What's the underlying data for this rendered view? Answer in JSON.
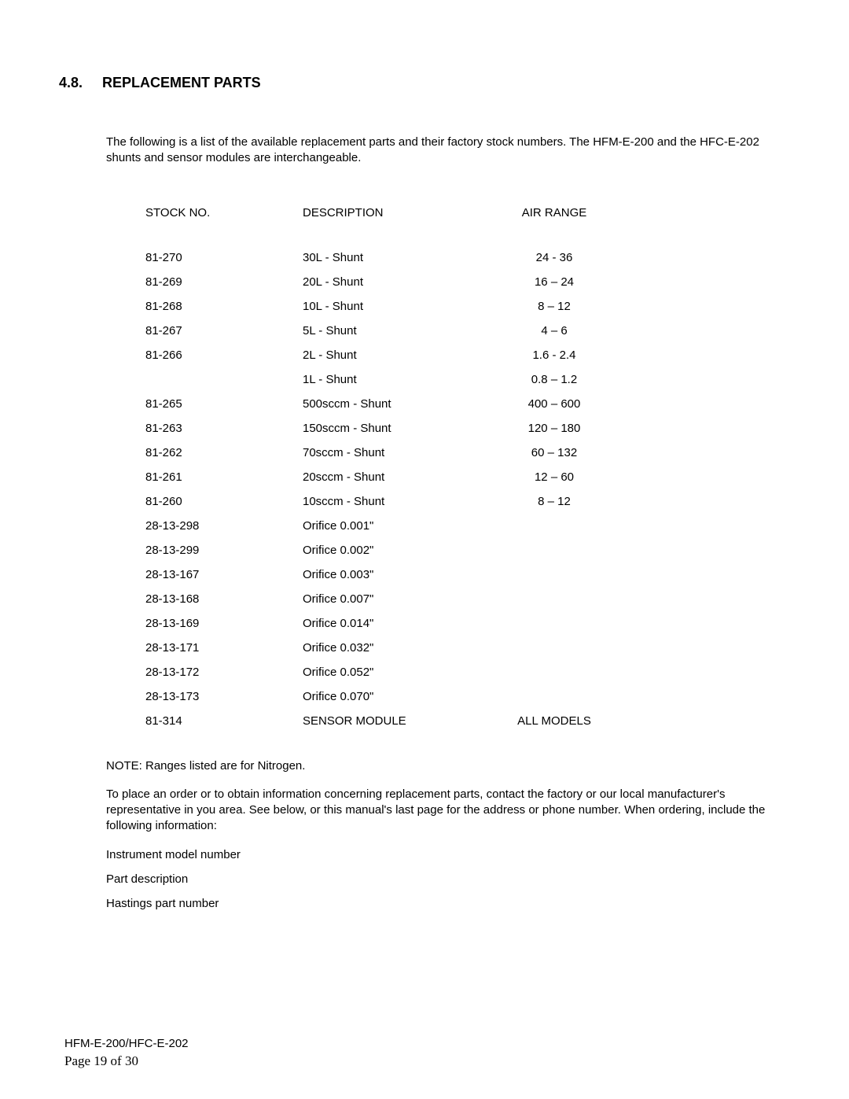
{
  "heading": {
    "number": "4.8.",
    "title": "REPLACEMENT PARTS"
  },
  "intro": "The following is a list of the available replacement parts and their factory stock numbers.    The HFM-E-200 and the HFC-E-202 shunts and sensor modules are interchangeable.",
  "table": {
    "headers": {
      "stock": "STOCK NO.",
      "description": "DESCRIPTION",
      "range": "AIR RANGE"
    },
    "rows": [
      {
        "stock": "81-270",
        "desc": "30L - Shunt",
        "range": "24 - 36"
      },
      {
        "stock": "81-269",
        "desc": "20L - Shunt",
        "range": "16 – 24"
      },
      {
        "stock": "81-268",
        "desc": "10L - Shunt",
        "range": "8 – 12"
      },
      {
        "stock": "81-267",
        "desc": "5L - Shunt",
        "range": "4 – 6"
      },
      {
        "stock": "81-266",
        "desc": "2L - Shunt",
        "range": "1.6 - 2.4"
      },
      {
        "stock": "",
        "desc": "1L - Shunt",
        "range": "0.8 – 1.2"
      },
      {
        "stock": "81-265",
        "desc": "500sccm - Shunt",
        "range": "400 – 600"
      },
      {
        "stock": "81-263",
        "desc": "150sccm - Shunt",
        "range": "120 – 180"
      },
      {
        "stock": "81-262",
        "desc": "70sccm - Shunt",
        "range": "60 – 132"
      },
      {
        "stock": "81-261",
        "desc": "20sccm - Shunt",
        "range": "12 – 60"
      },
      {
        "stock": "81-260",
        "desc": "10sccm - Shunt",
        "range": "8 – 12"
      },
      {
        "stock": "28-13-298",
        "desc": "Orifice 0.001\"",
        "range": ""
      },
      {
        "stock": "28-13-299",
        "desc": "Orifice 0.002\"",
        "range": ""
      },
      {
        "stock": "28-13-167",
        "desc": "Orifice 0.003\"",
        "range": ""
      },
      {
        "stock": "28-13-168",
        "desc": "Orifice 0.007\"",
        "range": ""
      },
      {
        "stock": "28-13-169",
        "desc": "Orifice 0.014\"",
        "range": ""
      },
      {
        "stock": "28-13-171",
        "desc": "Orifice 0.032\"",
        "range": ""
      },
      {
        "stock": "28-13-172",
        "desc": "Orifice 0.052\"",
        "range": ""
      },
      {
        "stock": "28-13-173",
        "desc": "Orifice 0.070\"",
        "range": ""
      },
      {
        "stock": "81-314",
        "desc": "SENSOR MODULE",
        "range": "ALL MODELS"
      }
    ]
  },
  "note": "NOTE:   Ranges listed are for Nitrogen.",
  "order_info": "To place an order or to obtain information concerning replacement parts, contact the factory or our local manufacturer's representative in you area.   See below, or this manual's last page for the address or phone number.   When ordering, include the following information:",
  "info_lines": [
    "Instrument model number",
    "Part description",
    "Hastings part number"
  ],
  "footer": {
    "model": "HFM-E-200/HFC-E-202",
    "page": "Page 19 of 30"
  }
}
